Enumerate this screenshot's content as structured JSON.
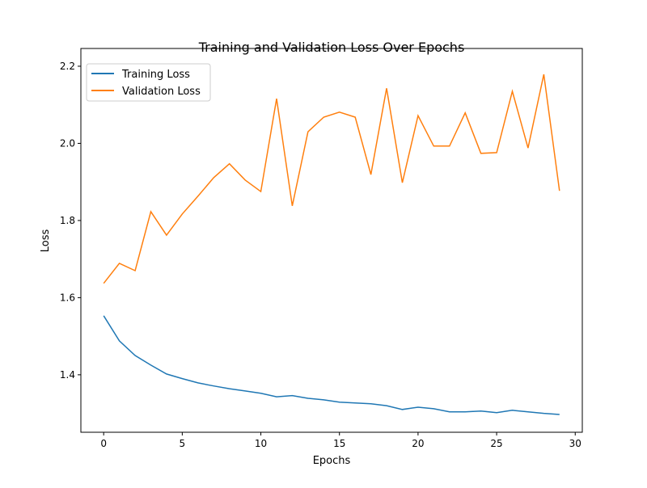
{
  "chart_data": {
    "type": "line",
    "title": "Training and Validation Loss Over Epochs",
    "xlabel": "Epochs",
    "ylabel": "Loss",
    "xlim": [
      -1.45,
      30.45
    ],
    "ylim": [
      1.251,
      2.246
    ],
    "xticks": [
      0,
      5,
      10,
      15,
      20,
      25,
      30
    ],
    "yticks": [
      1.4,
      1.6,
      1.8,
      2.0,
      2.2
    ],
    "xtick_labels": [
      "0",
      "5",
      "10",
      "15",
      "20",
      "25",
      "30"
    ],
    "ytick_labels": [
      "1.4",
      "1.6",
      "1.8",
      "2.0",
      "2.2"
    ],
    "grid": false,
    "legend_position": "top-left",
    "x": [
      0,
      1,
      2,
      3,
      4,
      5,
      6,
      7,
      8,
      9,
      10,
      11,
      12,
      13,
      14,
      15,
      16,
      17,
      18,
      19,
      20,
      21,
      22,
      23,
      24,
      25,
      26,
      27,
      28,
      29
    ],
    "series": [
      {
        "name": "Training Loss",
        "color": "#1f77b4",
        "values": [
          1.553,
          1.488,
          1.45,
          1.425,
          1.402,
          1.39,
          1.379,
          1.371,
          1.364,
          1.358,
          1.352,
          1.343,
          1.346,
          1.339,
          1.335,
          1.329,
          1.327,
          1.325,
          1.32,
          1.31,
          1.316,
          1.312,
          1.304,
          1.304,
          1.306,
          1.302,
          1.308,
          1.304,
          1.3,
          1.297
        ]
      },
      {
        "name": "Validation Loss",
        "color": "#ff7f0e",
        "values": [
          1.637,
          1.689,
          1.67,
          1.823,
          1.762,
          1.817,
          1.863,
          1.911,
          1.947,
          1.905,
          1.875,
          2.116,
          1.838,
          2.03,
          2.068,
          2.081,
          2.068,
          1.919,
          2.143,
          1.898,
          2.072,
          1.993,
          1.993,
          2.079,
          1.974,
          1.976,
          2.135,
          1.988,
          2.179,
          1.877
        ]
      }
    ]
  }
}
